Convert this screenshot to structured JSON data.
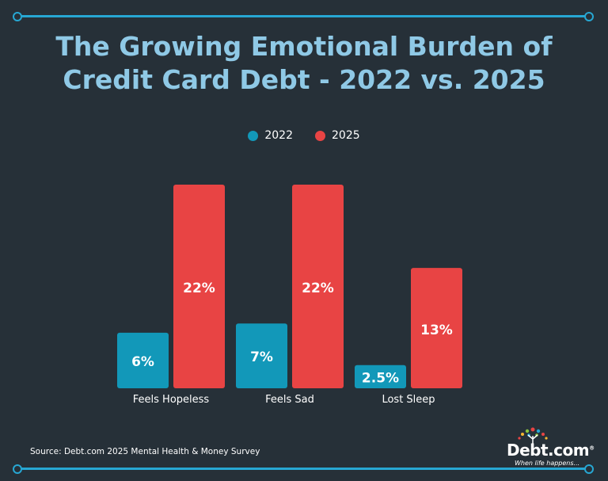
{
  "title_line1": "The Growing Emotional Burden of",
  "title_line2": "Credit Card Debt - 2022 vs. 2025",
  "source": "Source: Debt.com 2025 Mental Health & Money Survey",
  "logo": {
    "brand": "Debt.com",
    "registered": "®",
    "tagline": "When life happens..."
  },
  "colors": {
    "background": "#263038",
    "accent": "#27a7d3",
    "title": "#8fc9e6"
  },
  "chart_data": {
    "type": "bar",
    "title": "The Growing Emotional Burden of Credit Card Debt - 2022 vs. 2025",
    "categories": [
      "Feels Hopeless",
      "Feels Sad",
      "Lost Sleep"
    ],
    "series": [
      {
        "name": "2022",
        "color": "#1298b9",
        "values": [
          6,
          7,
          2.5
        ],
        "labels": [
          "6%",
          "7%",
          "2.5%"
        ]
      },
      {
        "name": "2025",
        "color": "#e84444",
        "values": [
          22,
          22,
          13
        ],
        "labels": [
          "22%",
          "22%",
          "13%"
        ]
      }
    ],
    "ylim": [
      0,
      22
    ],
    "legend_position": "top-center",
    "grid": false
  }
}
